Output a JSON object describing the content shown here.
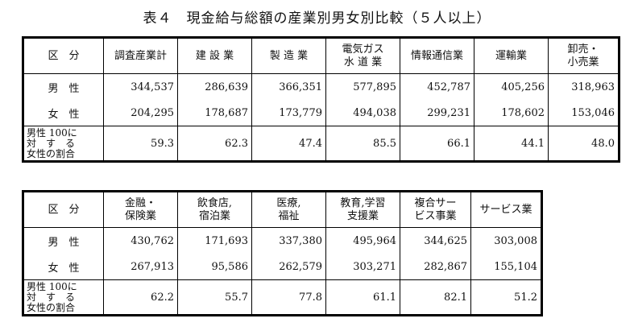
{
  "title": "表４　現金給与総額の産業別男女別比較（５人以上）",
  "table1": {
    "section_header": "区　分",
    "columns": [
      [
        "調査産業計"
      ],
      [
        "建 設 業"
      ],
      [
        "製 造 業"
      ],
      [
        "電気ガス",
        "水 道 業"
      ],
      [
        "情報通信業"
      ],
      [
        "運輸業"
      ],
      [
        "卸売・",
        "小売業"
      ]
    ],
    "rows": [
      {
        "label": "男　性",
        "values": [
          "344,537",
          "286,639",
          "366,351",
          "577,895",
          "452,787",
          "405,256",
          "318,963"
        ]
      },
      {
        "label": "女　性",
        "values": [
          "204,295",
          "178,687",
          "173,779",
          "494,038",
          "299,231",
          "178,602",
          "153,046"
        ]
      }
    ],
    "ratio_row": {
      "label_lines": [
        "男性 100に",
        "対　す　る",
        "女性の割合"
      ],
      "values": [
        "59.3",
        "62.3",
        "47.4",
        "85.5",
        "66.1",
        "44.1",
        "48.0"
      ]
    }
  },
  "table2": {
    "section_header": "区　分",
    "columns": [
      [
        "金融・",
        "保険業"
      ],
      [
        "飲食店,",
        "宿泊業"
      ],
      [
        "医療,",
        "福祉"
      ],
      [
        "教育,学習",
        "支援業"
      ],
      [
        "複合サー",
        "ビス事業"
      ],
      [
        "サービス業"
      ]
    ],
    "rows": [
      {
        "label": "男　性",
        "values": [
          "430,762",
          "171,693",
          "337,380",
          "495,964",
          "344,625",
          "303,008"
        ]
      },
      {
        "label": "女　性",
        "values": [
          "267,913",
          "95,586",
          "262,579",
          "303,271",
          "282,867",
          "155,104"
        ]
      }
    ],
    "ratio_row": {
      "label_lines": [
        "男性 100に",
        "対　す　る",
        "女性の割合"
      ],
      "values": [
        "62.2",
        "55.7",
        "77.8",
        "61.1",
        "82.1",
        "51.2"
      ]
    }
  }
}
